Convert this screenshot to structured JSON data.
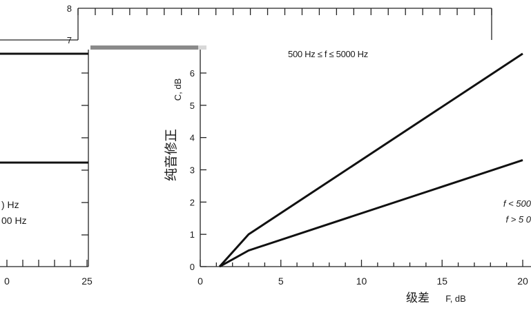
{
  "chart_data": [
    {
      "type": "line",
      "title": "",
      "xlabel": "",
      "ylabel": "",
      "x_ticks": [
        "0",
        "25"
      ],
      "y_ticks": [
        "8",
        "7"
      ],
      "series": [
        {
          "x": [
            0,
            25
          ],
          "y": [
            6.85,
            6.85
          ]
        },
        {
          "x": [
            0,
            25
          ],
          "y": [
            3.2,
            3.2
          ]
        }
      ],
      "legend": [
        ") Hz",
        "00 Hz"
      ],
      "legend_placement": "bottom-left"
    },
    {
      "type": "line",
      "title": "500 Hz ≤ f ≤ 5000 Hz",
      "xlabel_cn": "级差",
      "xlabel": "F, dB",
      "ylabel_cn": "纯音修正",
      "ylabel": "C, dB",
      "xlim": [
        0,
        20
      ],
      "ylim": [
        0,
        6.9
      ],
      "x_ticks": [
        "0",
        "5",
        "10",
        "15",
        "20"
      ],
      "y_ticks": [
        "0",
        "1",
        "2",
        "3",
        "4",
        "5",
        "6"
      ],
      "series": [
        {
          "name": "f < 500",
          "x": [
            1.2,
            3,
            20
          ],
          "y": [
            0,
            1,
            6.6
          ]
        },
        {
          "name": "f > 5 0",
          "x": [
            1.2,
            3,
            20
          ],
          "y": [
            0,
            0.5,
            3.3
          ]
        }
      ],
      "legend_placement": "right"
    }
  ]
}
